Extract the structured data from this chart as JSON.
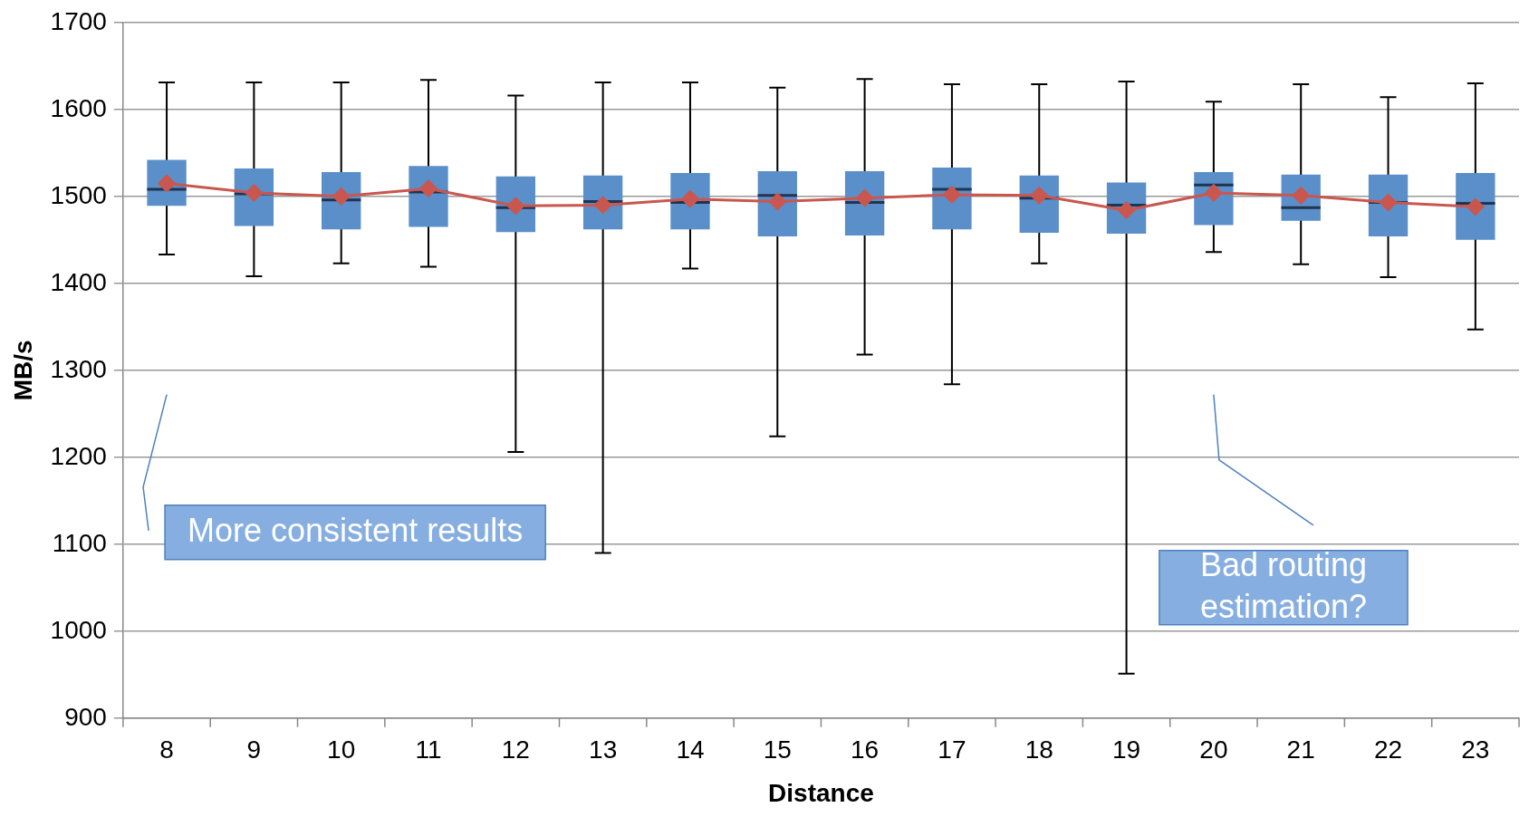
{
  "chart_data": {
    "type": "box",
    "xlabel": "Distance",
    "ylabel": "MB/s",
    "categories": [
      "8",
      "9",
      "10",
      "11",
      "12",
      "13",
      "14",
      "15",
      "16",
      "17",
      "18",
      "19",
      "20",
      "21",
      "22",
      "23"
    ],
    "ylim": [
      900,
      1700
    ],
    "yticks": [
      900,
      1000,
      1100,
      1200,
      1300,
      1400,
      1500,
      1600,
      1700
    ],
    "grid": "y",
    "legend": false,
    "series": [
      {
        "color": "#5b8fc9",
        "boxes": [
          {
            "low": 1433,
            "q1": 1489,
            "median": 1508,
            "q3": 1542,
            "high": 1631
          },
          {
            "low": 1408,
            "q1": 1466,
            "median": 1503,
            "q3": 1532,
            "high": 1631
          },
          {
            "low": 1423,
            "q1": 1462,
            "median": 1496,
            "q3": 1528,
            "high": 1631
          },
          {
            "low": 1419,
            "q1": 1465,
            "median": 1505,
            "q3": 1535,
            "high": 1634
          },
          {
            "low": 1206,
            "q1": 1459,
            "median": 1487,
            "q3": 1523,
            "high": 1616
          },
          {
            "low": 1090,
            "q1": 1462,
            "median": 1494,
            "q3": 1524,
            "high": 1631
          },
          {
            "low": 1417,
            "q1": 1462,
            "median": 1493,
            "q3": 1527,
            "high": 1631
          },
          {
            "low": 1224,
            "q1": 1454,
            "median": 1501,
            "q3": 1529,
            "high": 1625
          },
          {
            "low": 1318,
            "q1": 1455,
            "median": 1493,
            "q3": 1529,
            "high": 1635
          },
          {
            "low": 1284,
            "q1": 1462,
            "median": 1508,
            "q3": 1533,
            "high": 1629
          },
          {
            "low": 1423,
            "q1": 1458,
            "median": 1498,
            "q3": 1524,
            "high": 1629
          },
          {
            "low": 951,
            "q1": 1457,
            "median": 1490,
            "q3": 1516,
            "high": 1632
          },
          {
            "low": 1436,
            "q1": 1467,
            "median": 1513,
            "q3": 1528,
            "high": 1609
          },
          {
            "low": 1422,
            "q1": 1472,
            "median": 1487,
            "q3": 1525,
            "high": 1629
          },
          {
            "low": 1407,
            "q1": 1454,
            "median": 1493,
            "q3": 1525,
            "high": 1614
          },
          {
            "low": 1347,
            "q1": 1450,
            "median": 1492,
            "q3": 1527,
            "high": 1630
          }
        ]
      },
      {
        "type": "line",
        "color": "#c9574f",
        "marker": "diamond",
        "line_style": "solid",
        "values": [
          1515,
          1504,
          1500,
          1509,
          1489,
          1490,
          1497,
          1494,
          1498,
          1502,
          1501,
          1484,
          1504,
          1501,
          1493,
          1488
        ]
      }
    ],
    "annotations": [
      "More consistent results",
      "Bad routing estimation?"
    ]
  }
}
